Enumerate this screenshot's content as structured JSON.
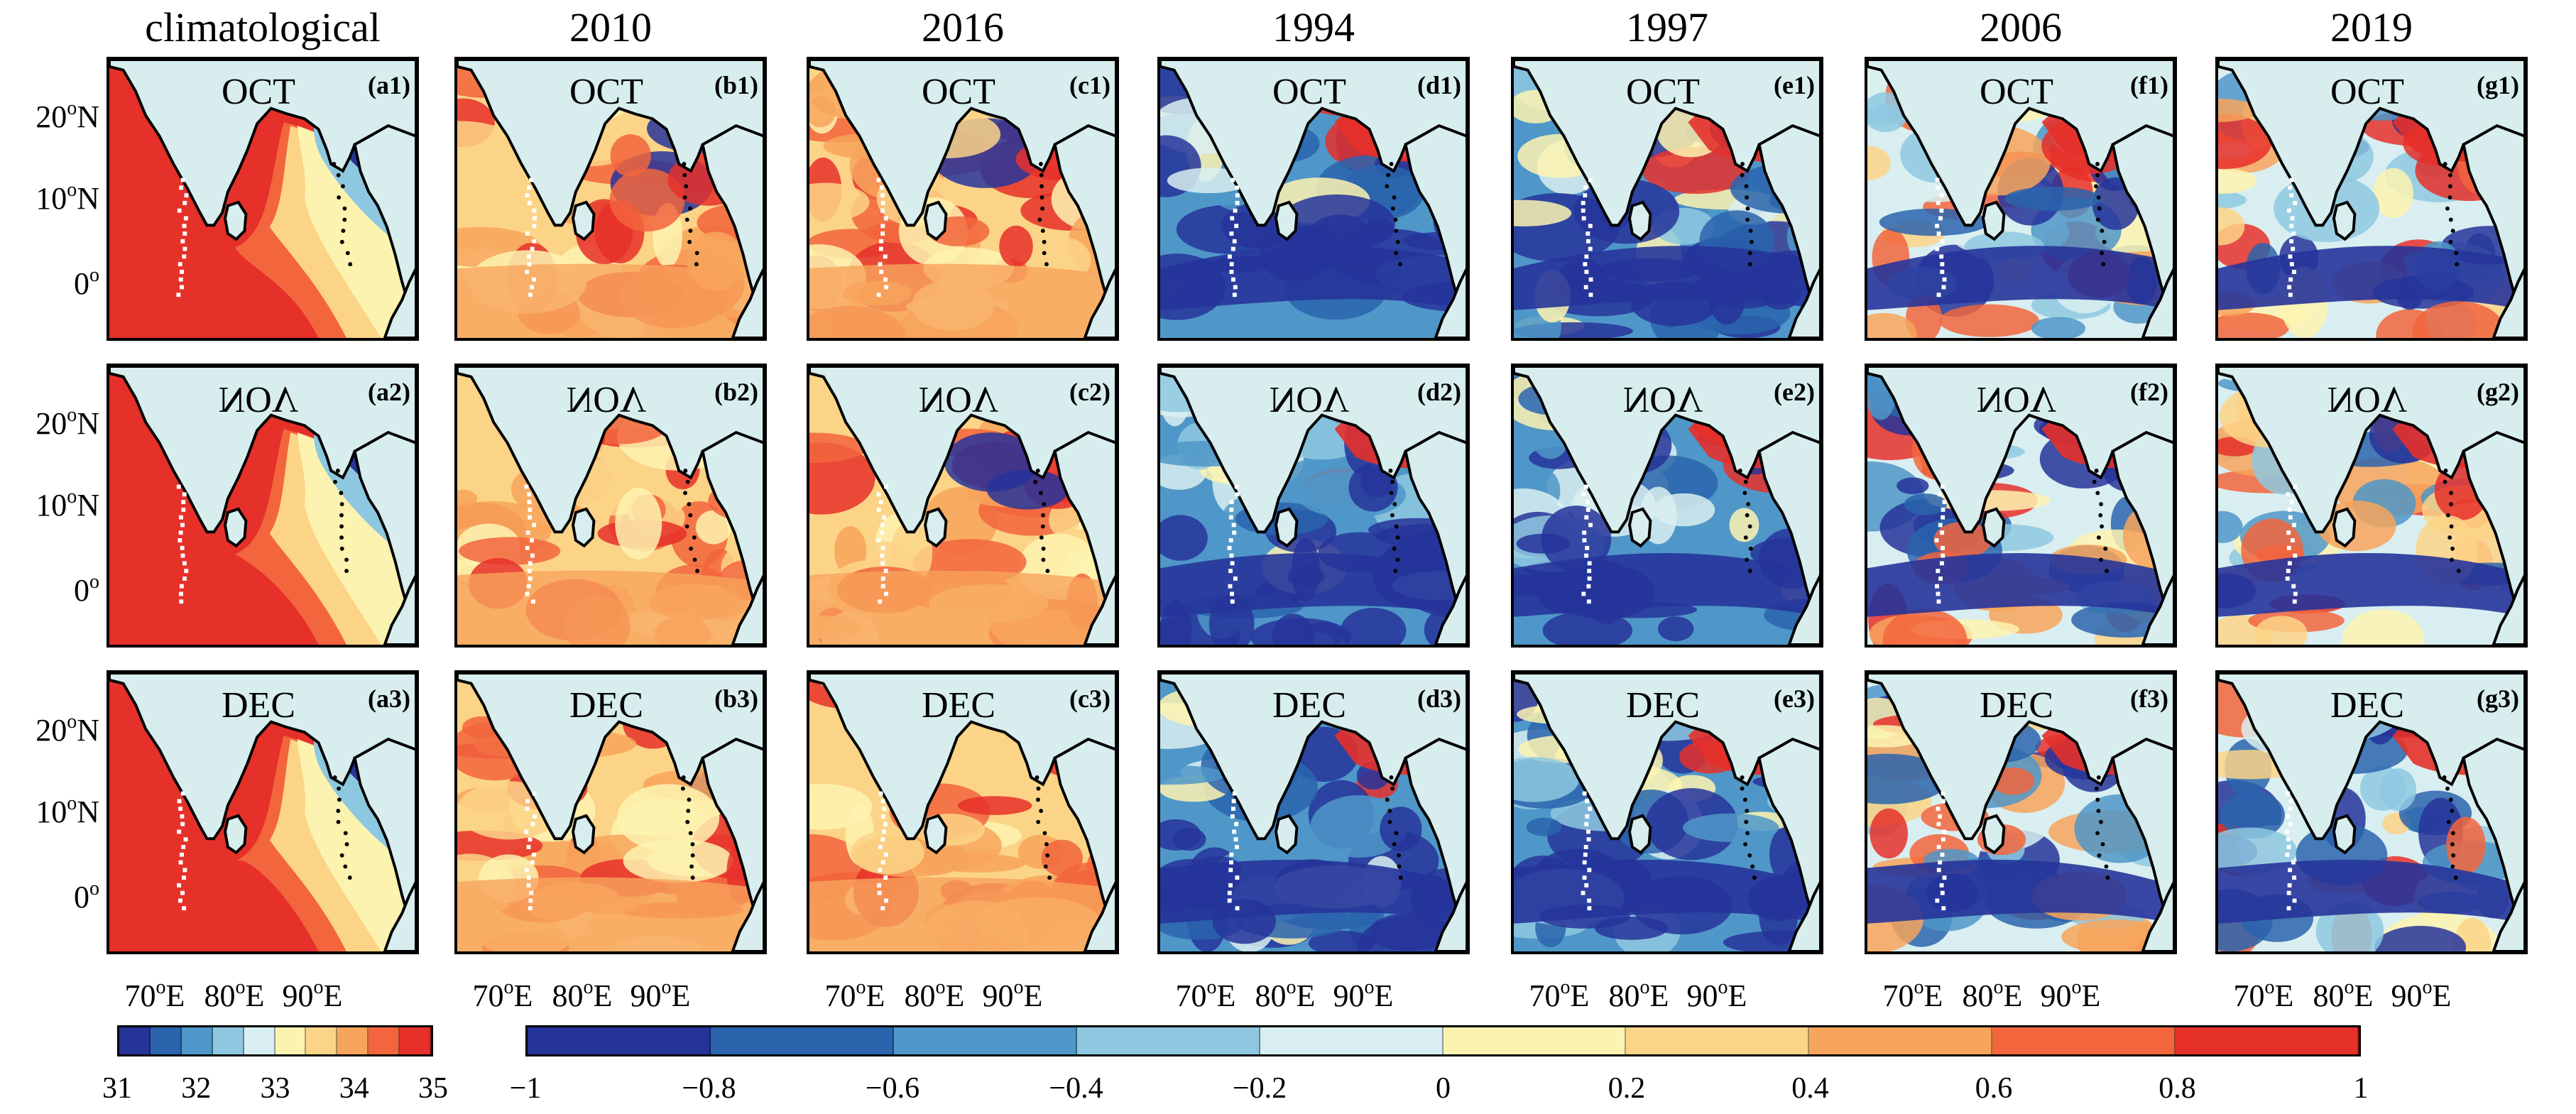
{
  "columns": [
    {
      "title": "climatological",
      "kind": "clim"
    },
    {
      "title": "2010",
      "kind": "pos"
    },
    {
      "title": "2016",
      "kind": "pos"
    },
    {
      "title": "1994",
      "kind": "neg"
    },
    {
      "title": "1997",
      "kind": "neg"
    },
    {
      "title": "2006",
      "kind": "mix"
    },
    {
      "title": "2019",
      "kind": "mix"
    }
  ],
  "months": [
    "OCT",
    "NOV",
    "DEC"
  ],
  "panel_labels": [
    [
      "(a1)",
      "(a2)",
      "(a3)"
    ],
    [
      "(b1)",
      "(b2)",
      "(b3)"
    ],
    [
      "(c1)",
      "(c2)",
      "(c3)"
    ],
    [
      "(d1)",
      "(d2)",
      "(d3)"
    ],
    [
      "(e1)",
      "(e2)",
      "(e3)"
    ],
    [
      "(f1)",
      "(f2)",
      "(f3)"
    ],
    [
      "(g1)",
      "(g2)",
      "(g3)"
    ]
  ],
  "y_ticks": [
    {
      "deg": "20",
      "hemi": "N"
    },
    {
      "deg": "10",
      "hemi": "N"
    },
    {
      "deg": "0",
      "hemi": ""
    }
  ],
  "x_ticks": [
    {
      "deg": "70",
      "hemi": "E"
    },
    {
      "deg": "80",
      "hemi": "E"
    },
    {
      "deg": "90",
      "hemi": "E"
    }
  ],
  "colorbar_clim": {
    "ticks": [
      "31",
      "32",
      "33",
      "34",
      "35"
    ],
    "colors": [
      "#26349a",
      "#2a64ad",
      "#4f97c8",
      "#8ec8e0",
      "#d9eef0",
      "#fdf3b0",
      "#fbd487",
      "#f7a45c",
      "#f2653d",
      "#e6302a"
    ]
  },
  "colorbar_anom": {
    "ticks": [
      "−1",
      "−0.8",
      "−0.6",
      "−0.4",
      "−0.2",
      "0",
      "0.2",
      "0.4",
      "0.6",
      "0.8",
      "1"
    ],
    "colors": [
      "#26349a",
      "#2a64ad",
      "#4f97c8",
      "#8ec8e0",
      "#d9eef0",
      "#fdf3b0",
      "#fbd487",
      "#f7a45c",
      "#f2653d",
      "#e6302a"
    ]
  },
  "land_color": "#d8eeee"
}
